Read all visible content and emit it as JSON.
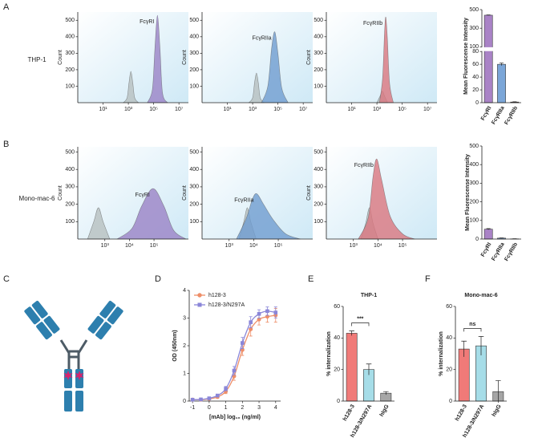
{
  "panel_labels": [
    "A",
    "B",
    "C",
    "D",
    "E",
    "F"
  ],
  "row_labels": [
    "THP-1",
    "Mono-mac-6"
  ],
  "chart_data": [
    {
      "type": "area",
      "ylabel": "Count",
      "annotation": "FcγRI",
      "xlim": [
        -1,
        7.75
      ],
      "ylim": [
        0,
        550
      ],
      "xticks": [
        {
          "value": 1,
          "label": "10¹"
        },
        {
          "value": 3,
          "label": "10³"
        },
        {
          "value": 5,
          "label": "10⁵"
        },
        {
          "value": 7,
          "label": "10⁷"
        }
      ],
      "yticks": [
        100,
        200,
        300,
        400,
        500
      ],
      "series": [
        {
          "color": "#b7bfbf",
          "x": [
            2.6,
            2.9,
            3.05,
            3.2,
            3.35,
            3.5,
            3.8
          ],
          "values": [
            0,
            30,
            120,
            190,
            120,
            30,
            0
          ]
        },
        {
          "color": "#9a82c6",
          "x": [
            4.5,
            4.9,
            5.1,
            5.3,
            5.5,
            5.7,
            6.1
          ],
          "values": [
            0,
            80,
            330,
            530,
            330,
            60,
            0
          ]
        }
      ]
    },
    {
      "type": "area",
      "ylabel": "Count",
      "annotation": "FcγRIIa",
      "xlim": [
        -1,
        7.75
      ],
      "ylim": [
        0,
        550
      ],
      "xticks": [
        {
          "value": 1,
          "label": "10¹"
        },
        {
          "value": 3,
          "label": "10³"
        },
        {
          "value": 5,
          "label": "10⁵"
        },
        {
          "value": 7,
          "label": "10⁷"
        }
      ],
      "yticks": [
        100,
        200,
        300,
        400,
        500
      ],
      "series": [
        {
          "color": "#b7bfbf",
          "x": [
            2.7,
            3.0,
            3.15,
            3.3,
            3.45,
            3.6,
            3.9
          ],
          "values": [
            0,
            30,
            120,
            180,
            120,
            30,
            0
          ]
        },
        {
          "color": "#6f9cd0",
          "x": [
            3.7,
            4.2,
            4.5,
            4.75,
            5.0,
            5.3,
            5.8
          ],
          "values": [
            0,
            100,
            330,
            430,
            300,
            90,
            0
          ]
        }
      ]
    },
    {
      "type": "area",
      "ylabel": "Count",
      "annotation": "FcγRIIb",
      "xlim": [
        -1,
        7.75
      ],
      "ylim": [
        0,
        550
      ],
      "xticks": [
        {
          "value": 1,
          "label": "10¹"
        },
        {
          "value": 3,
          "label": "10³"
        },
        {
          "value": 5,
          "label": "10⁵"
        },
        {
          "value": 7,
          "label": "10⁷"
        }
      ],
      "yticks": [
        100,
        200,
        300,
        400,
        500
      ],
      "series": [
        {
          "color": "#b7bfbf",
          "x": [
            3.0,
            3.25,
            3.44,
            3.6,
            3.85
          ],
          "values": [
            0,
            40,
            70,
            40,
            0
          ]
        },
        {
          "color": "#d9767e",
          "x": [
            3.2,
            3.45,
            3.6,
            3.7,
            3.82,
            4.0,
            4.3
          ],
          "values": [
            0,
            150,
            420,
            520,
            400,
            120,
            0
          ]
        }
      ]
    },
    {
      "type": "bar",
      "ylabel": "Mean Fluorescense Intensity",
      "categories": [
        "FcγRI",
        "FcγRIIa",
        "FcγRIIb"
      ],
      "values": [
        440,
        60,
        1
      ],
      "errors": [
        3,
        2,
        0.5
      ],
      "colors": [
        "#a983c6",
        "#7ba6d8",
        "#d9767c"
      ],
      "ylim": [
        0,
        500
      ],
      "yticks": [
        0,
        20,
        40,
        60,
        80,
        100,
        300,
        500
      ],
      "axis_break": [
        80,
        100
      ]
    },
    {
      "type": "area",
      "ylabel": "Count",
      "annotation": "FcγRI",
      "xlim": [
        1.9,
        6.4
      ],
      "ylim": [
        0,
        530
      ],
      "xticks": [
        {
          "value": 3,
          "label": "10³"
        },
        {
          "value": 4,
          "label": "10⁴"
        },
        {
          "value": 5,
          "label": "10⁵"
        }
      ],
      "yticks": [
        100,
        200,
        300,
        400,
        500
      ],
      "series": [
        {
          "color": "#b7bfbf",
          "x": [
            2.3,
            2.55,
            2.74,
            2.93,
            3.2
          ],
          "values": [
            0,
            100,
            180,
            100,
            0
          ]
        },
        {
          "color": "#9a82c6",
          "x": [
            3.5,
            4.1,
            4.5,
            4.96,
            5.4,
            5.8,
            6.3
          ],
          "values": [
            0,
            60,
            190,
            290,
            190,
            50,
            0
          ]
        }
      ]
    },
    {
      "type": "area",
      "ylabel": "Count",
      "annotation": "FcγRIIa",
      "xlim": [
        1.9,
        6.4
      ],
      "ylim": [
        0,
        530
      ],
      "xticks": [
        {
          "value": 3,
          "label": "10³"
        },
        {
          "value": 4,
          "label": "10⁴"
        },
        {
          "value": 5,
          "label": "10⁵"
        }
      ],
      "yticks": [
        100,
        200,
        300,
        400,
        500
      ],
      "series": [
        {
          "color": "#b7bfbf",
          "x": [
            3.4,
            3.6,
            3.74,
            3.88,
            4.1
          ],
          "values": [
            0,
            100,
            180,
            100,
            0
          ]
        },
        {
          "color": "#6f9cd0",
          "x": [
            3.3,
            3.7,
            3.95,
            4.13,
            4.4,
            4.8,
            5.3,
            5.9
          ],
          "values": [
            0,
            120,
            230,
            260,
            200,
            110,
            30,
            0
          ]
        }
      ]
    },
    {
      "type": "area",
      "ylabel": "Count",
      "annotation": "FcγRIIb",
      "xlim": [
        1.9,
        6.4
      ],
      "ylim": [
        0,
        530
      ],
      "xticks": [
        {
          "value": 3,
          "label": "10³"
        },
        {
          "value": 4,
          "label": "10⁴"
        },
        {
          "value": 5,
          "label": "10⁵"
        }
      ],
      "yticks": [
        100,
        200,
        300,
        400,
        500
      ],
      "series": [
        {
          "color": "#b7bfbf",
          "x": [
            3.3,
            3.5,
            3.65,
            3.8,
            4.0
          ],
          "values": [
            0,
            90,
            180,
            90,
            0
          ]
        },
        {
          "color": "#d9767e",
          "x": [
            3.2,
            3.6,
            3.8,
            3.95,
            4.15,
            4.5,
            5.0,
            5.5
          ],
          "values": [
            0,
            120,
            360,
            460,
            340,
            130,
            30,
            0
          ]
        }
      ]
    },
    {
      "type": "bar",
      "ylabel": "Mean Fluorescense Intensity",
      "categories": [
        "FcγRI",
        "FcγRIIa",
        "FcγRIIb"
      ],
      "values": [
        53,
        5,
        1
      ],
      "errors": [
        3,
        1,
        0.5
      ],
      "colors": [
        "#a983c6",
        "#7ba6d8",
        "#d9767c"
      ],
      "ylim": [
        0,
        500
      ],
      "yticks": [
        0,
        100,
        200,
        300,
        400,
        500
      ]
    },
    {
      "type": "line",
      "xlabel": "[mAb] log₁₀ (ng/ml)",
      "ylabel": "OD (450nm)",
      "x": [
        -1,
        -0.5,
        0,
        0.5,
        1,
        1.5,
        2,
        2.5,
        3,
        3.5,
        4
      ],
      "xlim": [
        -1.2,
        4.3
      ],
      "ylim": [
        0,
        4
      ],
      "xticks": [
        -1,
        0,
        1,
        2,
        3,
        4
      ],
      "yticks": [
        0,
        1,
        2,
        3,
        4
      ],
      "series": [
        {
          "name": "h128-3",
          "color": "#ee8e68",
          "marker": "circle",
          "values": [
            0.05,
            0.05,
            0.08,
            0.15,
            0.35,
            0.9,
            1.85,
            2.6,
            2.95,
            3.05,
            3.1
          ],
          "errors": [
            0.02,
            0.02,
            0.03,
            0.05,
            0.08,
            0.15,
            0.2,
            0.25,
            0.2,
            0.2,
            0.25
          ]
        },
        {
          "name": "h128-3/N297A",
          "color": "#8a86d8",
          "marker": "square",
          "values": [
            0.05,
            0.06,
            0.1,
            0.2,
            0.45,
            1.1,
            2.1,
            2.85,
            3.15,
            3.25,
            3.2
          ],
          "errors": [
            0.02,
            0.02,
            0.03,
            0.05,
            0.08,
            0.15,
            0.2,
            0.2,
            0.15,
            0.15,
            0.2
          ]
        }
      ]
    },
    {
      "type": "bar",
      "title": "THP-1",
      "ylabel": "% internalization",
      "annotation": "***",
      "categories": [
        "h128-3",
        "h128-3/N297A",
        "hIgG"
      ],
      "values": [
        43,
        20,
        5
      ],
      "errors": [
        1.5,
        3.5,
        1
      ],
      "colors": [
        "#f07a78",
        "#a6dde8",
        "#a6a6a6"
      ],
      "ylim": [
        0,
        60
      ],
      "yticks": [
        0,
        20,
        40,
        60
      ]
    },
    {
      "type": "bar",
      "title": "Mono-mac-6",
      "ylabel": "% internalization",
      "annotation": "ns",
      "categories": [
        "h128-3",
        "h128-3/N297A",
        "hIgG"
      ],
      "values": [
        33,
        35,
        6
      ],
      "errors": [
        5,
        6,
        7
      ],
      "colors": [
        "#f07a78",
        "#a6dde8",
        "#a6a6a6"
      ],
      "ylim": [
        0,
        60
      ],
      "yticks": [
        0,
        20,
        40,
        60
      ]
    }
  ]
}
